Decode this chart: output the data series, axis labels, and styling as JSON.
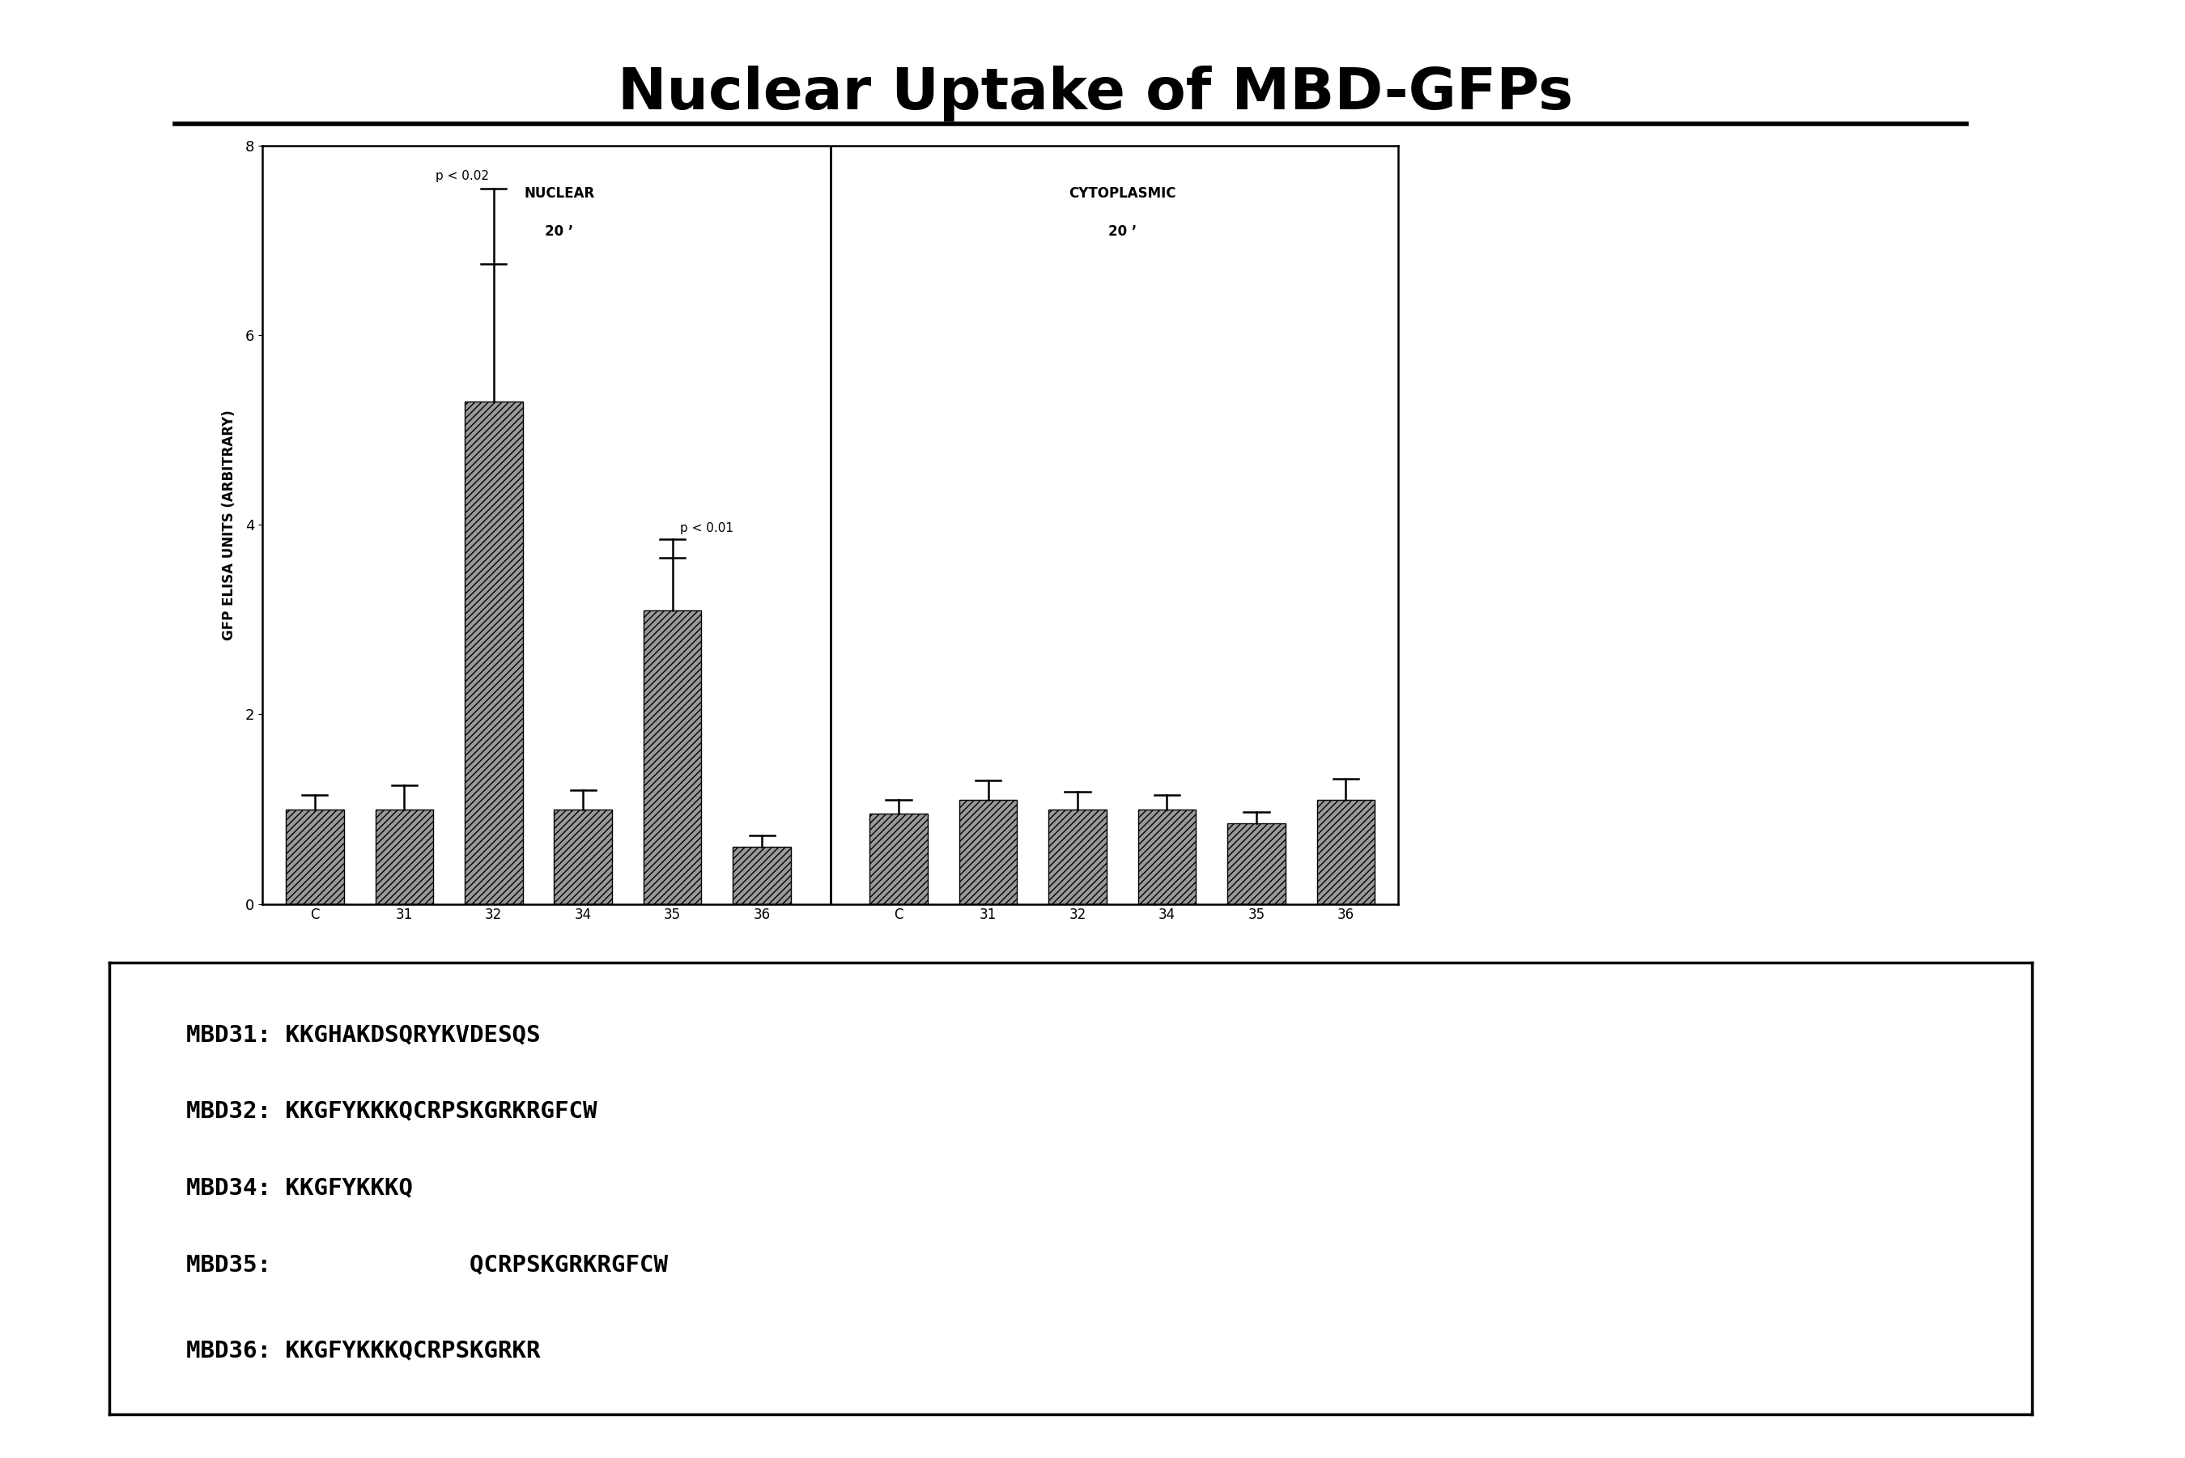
{
  "title": "Nuclear Uptake of MBD-GFPs",
  "ylabel": "GFP ELISA UNITS (ARBITRARY)",
  "ylim": [
    0,
    8
  ],
  "yticks": [
    0,
    2,
    4,
    6,
    8
  ],
  "nuclear_label_line1": "NUCLEAR",
  "nuclear_label_line2": "20 ’",
  "cytoplasmic_label_line1": "CYTOPLASMIC",
  "cytoplasmic_label_line2": "20 ’",
  "nuclear_categories": [
    "C",
    "31",
    "32",
    "34",
    "35",
    "36"
  ],
  "cytoplasmic_categories": [
    "C",
    "31",
    "32",
    "34",
    "35",
    "36"
  ],
  "nuclear_values": [
    1.0,
    1.0,
    5.3,
    1.0,
    3.1,
    0.6
  ],
  "cytoplasmic_values": [
    0.95,
    1.1,
    1.0,
    1.0,
    0.85,
    1.1
  ],
  "nuclear_errors": [
    0.15,
    0.25,
    1.45,
    0.2,
    0.55,
    0.12
  ],
  "cytoplasmic_errors": [
    0.15,
    0.2,
    0.18,
    0.15,
    0.12,
    0.22
  ],
  "pval_32_text": "p < 0.02",
  "pval_35_text": "p < 0.01",
  "background_color": "#ffffff",
  "legend_lines": [
    "MBD31: KKGHAKDSQRYKVDESQS",
    "MBD32: KKGFYKKKQCRPSKGRKRGFCW",
    "MBD34: KKGFYKKKQ",
    "MBD35:              QCRPSKGRKRGFCW",
    "MBD36: KKGFYKKKQCRPSKGRKR"
  ]
}
